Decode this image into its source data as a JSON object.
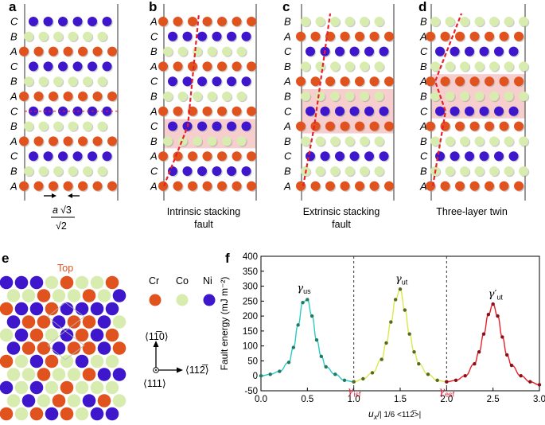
{
  "panels": {
    "a": {
      "label": "a"
    },
    "b": {
      "label": "b",
      "caption_lines": [
        "Intrinsic stacking",
        "fault"
      ]
    },
    "c": {
      "label": "c",
      "caption_lines": [
        "Extrinsic stacking",
        "fault"
      ]
    },
    "d": {
      "label": "d",
      "caption_lines": [
        "Three-layer twin"
      ]
    },
    "e": {
      "label": "e"
    },
    "f": {
      "label": "f"
    }
  },
  "stacking": {
    "a": [
      "C",
      "B",
      "A",
      "C",
      "B",
      "A",
      "C",
      "B",
      "A",
      "C",
      "B",
      "A"
    ],
    "b": [
      "A",
      "C",
      "B",
      "A",
      "C",
      "B",
      "A",
      "C",
      "B",
      "A",
      "C",
      "A"
    ],
    "c": [
      "B",
      "A",
      "C",
      "B",
      "A",
      "B",
      "C",
      "A",
      "B",
      "C",
      "B",
      "A"
    ],
    "d": [
      "B",
      "A",
      "C",
      "B",
      "A",
      "B",
      "C",
      "A",
      "B",
      "C",
      "B",
      "A"
    ]
  },
  "spacing_label": {
    "a": "a",
    "sqrt1": "√3",
    "sqrt2": "√2"
  },
  "panel_e": {
    "top_label": "Top",
    "legend": [
      {
        "name": "Cr",
        "color": "#e0531e"
      },
      {
        "name": "Co",
        "color": "#d8ecb0"
      },
      {
        "name": "Ni",
        "color": "#3e16cc"
      }
    ],
    "dir_up": "⟨11̅0⟩",
    "dir_right": "⟨112̅⟩",
    "dir_normal": "⟨111⟩"
  },
  "colors": {
    "Cr": "#e0531e",
    "Co": "#d8ecb0",
    "Ni": "#3e16cc",
    "fault_line": "#e8202a",
    "fault_band": "#f6c6c6"
  },
  "chart_data": {
    "type": "line",
    "xlabel_main": "u",
    "xlabel_sub": "x",
    "xlabel_rest": "/| 1/6 <112̅>|",
    "ylabel": "Fault energy (mJ m⁻²)",
    "xlim": [
      0,
      3.0
    ],
    "ylim": [
      -50,
      400
    ],
    "xticks": [
      "0.0",
      "0.5",
      "1.0",
      "1.5",
      "2.0",
      "2.5",
      "3.0"
    ],
    "yticks": [
      "-50",
      "0",
      "50",
      "100",
      "150",
      "200",
      "250",
      "300",
      "350",
      "400"
    ],
    "vlines": [
      1.0,
      2.0
    ],
    "annotations": [
      {
        "symbol": "γ",
        "sub": "us",
        "color": "#000000"
      },
      {
        "symbol": "γ",
        "sub": "isf",
        "color": "#e0203a"
      },
      {
        "symbol": "γ",
        "sub": "ut",
        "color": "#000000"
      },
      {
        "symbol": "γ",
        "sub": "esf",
        "color": "#e0203a"
      },
      {
        "symbol": "γ′",
        "sub": "ut",
        "color": "#000000"
      }
    ],
    "series": [
      {
        "color": "#2dc9c6",
        "point_color": "#1f7a60",
        "x": [
          0.0,
          0.1,
          0.2,
          0.3,
          0.35,
          0.4,
          0.45,
          0.5,
          0.55,
          0.6,
          0.65,
          0.7,
          0.8,
          0.9,
          1.0
        ],
        "y": [
          0,
          5,
          15,
          45,
          95,
          170,
          245,
          255,
          200,
          120,
          65,
          30,
          5,
          -15,
          -20
        ]
      },
      {
        "color": "#dce84a",
        "point_color": "#556b1a",
        "x": [
          1.0,
          1.1,
          1.2,
          1.3,
          1.35,
          1.4,
          1.45,
          1.5,
          1.55,
          1.6,
          1.65,
          1.7,
          1.8,
          1.9,
          2.0
        ],
        "y": [
          -20,
          -10,
          10,
          55,
          110,
          180,
          255,
          290,
          220,
          140,
          80,
          40,
          5,
          -15,
          -20
        ]
      },
      {
        "color": "#e8202a",
        "point_color": "#8a1018",
        "x": [
          2.0,
          2.1,
          2.2,
          2.3,
          2.35,
          2.4,
          2.45,
          2.5,
          2.55,
          2.6,
          2.65,
          2.7,
          2.8,
          2.9,
          3.0
        ],
        "y": [
          -20,
          -15,
          0,
          40,
          80,
          140,
          205,
          240,
          200,
          130,
          70,
          35,
          0,
          -20,
          -30
        ]
      }
    ]
  }
}
